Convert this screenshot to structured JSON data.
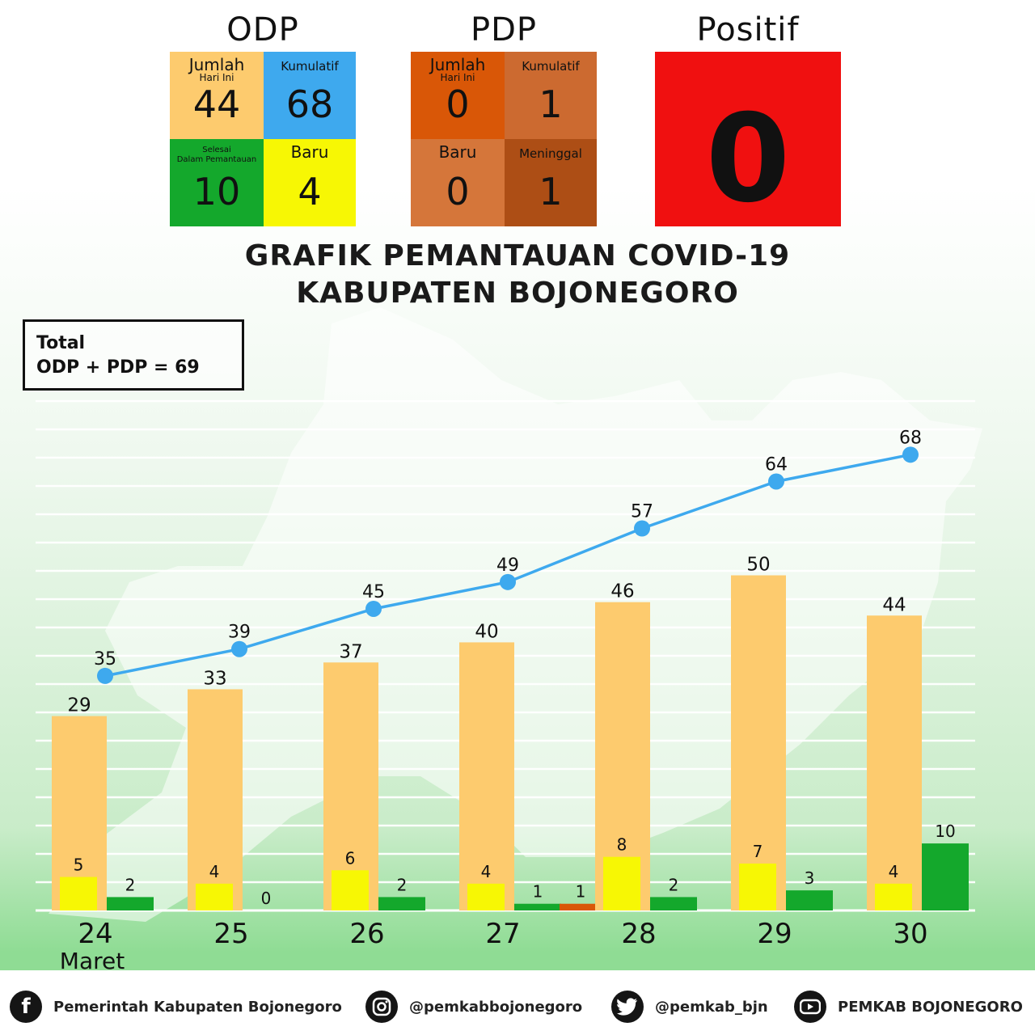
{
  "odp": {
    "title": "ODP",
    "jumlah_label": "Jumlah",
    "jumlah_sub": "Hari Ini",
    "jumlah_value": "44",
    "kumulatif_label": "Kumulatif",
    "kumulatif_value": "68",
    "selesai_label_1": "Selesai",
    "selesai_label_2": "Dalam Pemantauan",
    "selesai_value": "10",
    "baru_label": "Baru",
    "baru_value": "4"
  },
  "pdp": {
    "title": "PDP",
    "jumlah_label": "Jumlah",
    "jumlah_sub": "Hari Ini",
    "jumlah_value": "0",
    "kumulatif_label": "Kumulatif",
    "kumulatif_value": "1",
    "baru_label": "Baru",
    "baru_value": "0",
    "meninggal_label": "Meninggal",
    "meninggal_value": "1"
  },
  "positif": {
    "title": "Positif",
    "value": "0"
  },
  "main_title_1": "GRAFIK PEMANTAUAN COVID-19",
  "main_title_2": "KABUPATEN BOJONEGORO",
  "total": {
    "line1": "Total",
    "line2": "ODP + PDP = 69"
  },
  "colors": {
    "odp_jumlah": "#fdcb6e",
    "odp_kumulatif": "#3ea9ee",
    "odp_selesai": "#14a82c",
    "odp_baru": "#f7f704",
    "pdp_jumlah": "#d95707",
    "pdp_kumulatif": "#cc6a30",
    "pdp_baru": "#d5763a",
    "pdp_meninggal": "#ad4e15",
    "positif": "#f01010",
    "line": "#3ea9ee",
    "point": "#3ea9ee"
  },
  "chart_data": {
    "type": "bar",
    "categories": [
      "24",
      "25",
      "26",
      "27",
      "28",
      "29",
      "30"
    ],
    "month_label": "Maret",
    "series": [
      {
        "values": [
          29,
          33,
          37,
          40,
          46,
          50,
          44
        ],
        "color": "#fdcb6e",
        "role": "bar-wide"
      },
      {
        "values": [
          5,
          4,
          6,
          4,
          8,
          7,
          4
        ],
        "color": "#f7f704",
        "role": "bar-inner"
      },
      {
        "values": [
          2,
          0,
          2,
          1,
          2,
          3,
          10
        ],
        "color": "#14a82c",
        "role": "bar-side"
      },
      {
        "values": [
          null,
          null,
          null,
          1,
          null,
          null,
          null
        ],
        "color": "#d95707",
        "role": "bar-extra"
      },
      {
        "values": [
          35,
          39,
          45,
          49,
          57,
          64,
          68
        ],
        "color": "#3ea9ee",
        "role": "line"
      }
    ],
    "grid": true,
    "gridlines": 19,
    "ylim": [
      0,
      76
    ]
  },
  "footer": {
    "facebook_icon": "facebook-icon",
    "facebook_text": "Pemerintah Kabupaten Bojonegoro",
    "instagram_icon": "instagram-icon",
    "instagram_text": "@pemkabbojonegoro",
    "twitter_icon": "twitter-icon",
    "twitter_text": "@pemkab_bjn",
    "youtube_icon": "youtube-icon",
    "youtube_text": "PEMKAB BOJONEGORO"
  }
}
